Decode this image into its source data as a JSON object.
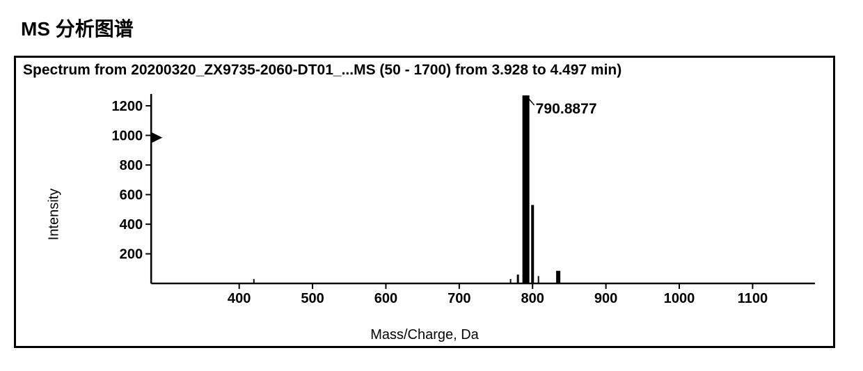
{
  "heading": "MS 分析图谱",
  "chart": {
    "type": "mass-spectrum",
    "title": "Spectrum from 20200320_ZX9735-2060-DT01_...MS (50 - 1700) from 3.928 to 4.497 min)",
    "x_axis": {
      "label": "Mass/Charge, Da",
      "min": 280,
      "max": 1185,
      "ticks": [
        400,
        500,
        600,
        700,
        800,
        900,
        1000,
        1100
      ],
      "label_fontsize": 20
    },
    "y_axis": {
      "label": "Intensity",
      "min": 0,
      "max": 1280,
      "ticks": [
        200,
        400,
        600,
        800,
        1000,
        1200
      ],
      "label_fontsize": 20,
      "arrow_at": 985
    },
    "peaks": [
      {
        "mz": 420,
        "intensity": 30,
        "width": 2
      },
      {
        "mz": 770,
        "intensity": 30,
        "width": 2
      },
      {
        "mz": 780,
        "intensity": 60,
        "width": 3
      },
      {
        "mz": 790.8877,
        "intensity": 1270,
        "width": 10,
        "label": "790.8877"
      },
      {
        "mz": 800,
        "intensity": 530,
        "width": 4
      },
      {
        "mz": 808,
        "intensity": 50,
        "width": 2
      },
      {
        "mz": 835,
        "intensity": 85,
        "width": 6
      }
    ],
    "colors": {
      "background": "#ffffff",
      "axis": "#000000",
      "peak": "#000000",
      "text": "#000000",
      "frame": "#000000"
    },
    "tick_fontsize": 20,
    "peak_label_fontsize": 21,
    "title_fontsize": 21,
    "frame_border_width": 3,
    "axis_line_width": 2.5
  }
}
